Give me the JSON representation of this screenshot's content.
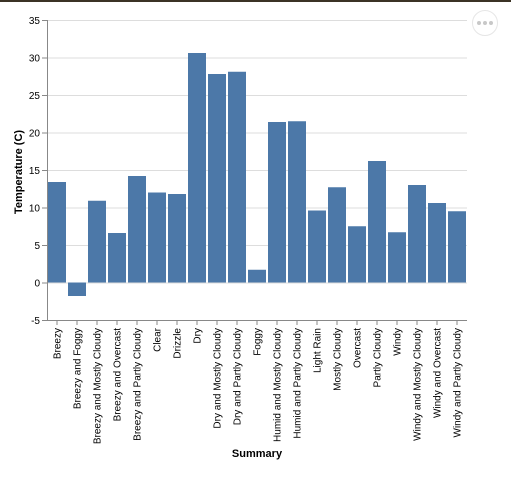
{
  "chart_data": {
    "type": "bar",
    "xlabel": "Summary",
    "ylabel": "Temperature (C)",
    "ylim": [
      -5,
      35
    ],
    "yticks": [
      -5,
      0,
      5,
      10,
      15,
      20,
      25,
      30,
      35
    ],
    "grid": true,
    "color": "#4c78a8",
    "categories": [
      "Breezy",
      "Breezy and Foggy",
      "Breezy and Mostly Cloudy",
      "Breezy and Overcast",
      "Breezy and Partly Cloudy",
      "Clear",
      "Drizzle",
      "Dry",
      "Dry and Mostly Cloudy",
      "Dry and Partly Cloudy",
      "Foggy",
      "Humid and Mostly Cloudy",
      "Humid and Partly Cloudy",
      "Light Rain",
      "Mostly Cloudy",
      "Overcast",
      "Partly Cloudy",
      "Windy",
      "Windy and Mostly Cloudy",
      "Windy and Overcast",
      "Windy and Partly Cloudy"
    ],
    "values": [
      13.4,
      -1.8,
      10.9,
      6.6,
      14.2,
      12.0,
      11.8,
      30.6,
      27.8,
      28.1,
      1.7,
      21.4,
      21.5,
      9.6,
      12.7,
      7.5,
      16.2,
      6.7,
      13.0,
      10.6,
      9.5
    ]
  },
  "actions_menu": {
    "icon": "ellipsis-icon"
  }
}
